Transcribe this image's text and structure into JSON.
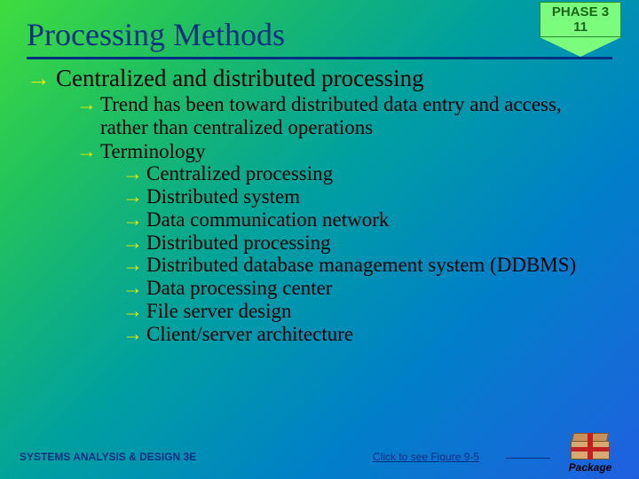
{
  "badge": {
    "line1": "PHASE 3",
    "line2": "11"
  },
  "title": "Processing Methods",
  "bullets": {
    "l1": "Centralized and distributed processing",
    "l2a": "Trend has been toward distributed data entry and access, rather than centralized operations",
    "l2b": "Terminology",
    "l3": {
      "a": "Centralized processing",
      "b": "Distributed system",
      "c": "Data communication network",
      "d": "Distributed processing",
      "e": "Distributed database management system (DDBMS)",
      "f": "Data processing center",
      "g": "File server design",
      "h": "Client/server architecture"
    }
  },
  "footer": {
    "left": "SYSTEMS ANALYSIS & DESIGN 3E",
    "link": "Click to see Figure 9-5",
    "package": "Package"
  },
  "colors": {
    "title": "#003080",
    "arrow": "#e8e800",
    "badge_bg": "#7cfc7c",
    "badge_fg": "#1a651a"
  }
}
